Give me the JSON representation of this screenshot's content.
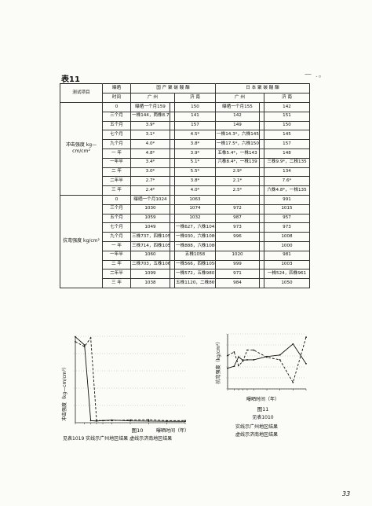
{
  "page": {
    "table_title": "表11",
    "corner_mark": "一 .。",
    "page_number": "33"
  },
  "table": {
    "header": {
      "param_label": "测试项目",
      "time_label_1": "曝晒",
      "time_label_2": "时间",
      "domestic": "国 产 聚 碳 酸 酯",
      "japanese": "日 本 聚 碳 酸 酯",
      "guangzhou": "广 州",
      "jinan": "济 南"
    },
    "sections": [
      {
        "param": "冲击强度 kg—cm/cm²",
        "rows": [
          [
            "0",
            "曝晒一个月159",
            "",
            "150",
            "曝晒一个月155",
            "",
            "142"
          ],
          [
            "三个月",
            "一株144，两株8.7*",
            "",
            "141",
            "142",
            "",
            "151"
          ],
          [
            "五个月",
            "3.9*",
            "",
            "157",
            "149",
            "",
            "150"
          ],
          [
            "七个月",
            "3.1*",
            "",
            "4.5*",
            "一株14.3*，六株145",
            "",
            "145"
          ],
          [
            "九个月",
            "4.0*",
            "",
            "3.8*",
            "一株17.5*，六株150",
            "",
            "157"
          ],
          [
            "一 年",
            "4.8*",
            "",
            "3.9*",
            "五株5.4*，一株143",
            "",
            "148"
          ],
          [
            "一年半",
            "3.4*",
            "",
            "5.1*",
            "六株8.4*，一株139",
            "",
            "三株9.9*，二株135"
          ],
          [
            "二 年",
            "3.0*",
            "",
            "5.5*",
            "2.9*",
            "",
            "134"
          ],
          [
            "二年半",
            "2.7*",
            "",
            "3.8*",
            "2.1*",
            "",
            "7.6*"
          ],
          [
            "三 年",
            "2.4*",
            "",
            "4.0*",
            "2.5*",
            "",
            "六株4.8*，一株135"
          ]
        ]
      },
      {
        "param": "抗弯强度 kg/cm²",
        "rows": [
          [
            "0",
            "曝晒一个月1024",
            "",
            "1063",
            "",
            "",
            "991"
          ],
          [
            "三个月",
            "1030",
            "",
            "1074",
            "972",
            "",
            "1015"
          ],
          [
            "五个月",
            "1059",
            "",
            "1032",
            "987",
            "",
            "957"
          ],
          [
            "七个月",
            "1049",
            "",
            "一株627，六株1045",
            "973",
            "",
            "973"
          ],
          [
            "九个月",
            "三株737，四株1050",
            "",
            "一株930，六株1080",
            "996",
            "",
            "1008"
          ],
          [
            "一 年",
            "三株714，四株1050",
            "",
            "一株888，六株1080",
            "",
            "",
            "1000"
          ],
          [
            "一年半",
            "1060",
            "",
            "五株1058",
            "1020",
            "",
            "981"
          ],
          [
            "二 年",
            "二株703，五株1065",
            "",
            "一株566，四株1050",
            "999",
            "",
            "1003"
          ],
          [
            "二年半",
            "1099",
            "",
            "一株572，五株980",
            "971",
            "",
            "一株524，四株961"
          ],
          [
            "三 年",
            "1038",
            "",
            "五株1120，二株869",
            "984",
            "",
            "1050"
          ]
        ]
      }
    ]
  },
  "figures": {
    "fig10": {
      "ylabel": "冲击强度（kg—cm/cm²）",
      "xlabel": "曝晒时间（年）",
      "fig_label": "图10",
      "caption": "见表1019  实线示广州地区结果  虚线示济南地区结果"
    },
    "fig11": {
      "ylabel": "抗弯强度（kg/cm²）",
      "xlabel": "曝晒时间（年）",
      "fig_label": "图11",
      "caption_number": "见表1010",
      "legend_solid": "实线示广州地区结果",
      "legend_dashed": "虚线示济南地区结果"
    }
  },
  "chart_data": [
    {
      "type": "line",
      "title": "",
      "xlabel": "曝晒时间（年）",
      "ylabel": "冲击强度（kg—cm/cm²）",
      "x": [
        0,
        0.25,
        0.42,
        0.58,
        0.75,
        1,
        1.5,
        2,
        2.5,
        3
      ],
      "series": [
        {
          "name": "实线示广州地区结果",
          "style": "solid",
          "values": [
            159,
            144,
            3.9,
            3.1,
            4.0,
            4.8,
            3.4,
            3.0,
            2.7,
            2.4
          ]
        },
        {
          "name": "虚线示济南地区结果",
          "style": "dashed",
          "values": [
            150,
            141,
            157,
            4.5,
            3.8,
            3.9,
            5.1,
            5.5,
            3.8,
            4.0
          ]
        }
      ]
    },
    {
      "type": "line",
      "title": "",
      "xlabel": "曝晒时间（年）",
      "ylabel": "抗弯强度（kg/cm²）",
      "x": [
        0,
        0.25,
        0.42,
        0.58,
        0.75,
        1,
        1.5,
        2,
        2.5,
        3
      ],
      "series": [
        {
          "name": "实线示广州地区结果",
          "style": "solid",
          "values": [
            1024,
            1030,
            1059,
            1049,
            1050,
            1050,
            1060,
            1065,
            1099,
            1038
          ]
        },
        {
          "name": "虚线示济南地区结果",
          "style": "dashed",
          "values": [
            1063,
            1074,
            1032,
            1045,
            1080,
            1080,
            1058,
            1050,
            980,
            1120
          ]
        }
      ]
    }
  ]
}
